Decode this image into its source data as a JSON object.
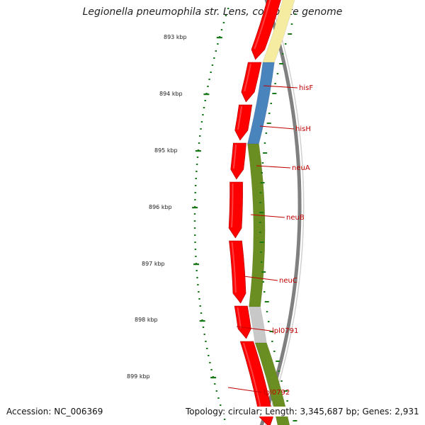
{
  "title": "Legionella pneumophila str. Lens, complete genome",
  "accession_text": "Accession: NC_006369",
  "topology_text": "Topology: circular; Length: 3,345,687 bp; Genes: 2,931",
  "scale_labels": [
    "893 kbp",
    "894 kbp",
    "895 kbp",
    "896 kbp",
    "897 kbp",
    "898 kbp",
    "899 kbp"
  ],
  "gene_labels": [
    "hisF",
    "hisH",
    "neuA",
    "neuB",
    "neuC",
    "lpl0791",
    "lpl0792"
  ],
  "colors": {
    "cds_red": "#ff0000",
    "backbone_gray": "#808080",
    "ring_yellow": "#f5eca2",
    "ring_blue": "#4a84bd",
    "ring_green": "#6b8e23",
    "ring_light_gray": "#c8c8c8",
    "tick_green": "#1a7a1a",
    "label_red": "#c00000"
  },
  "icons": [
    "forward-arrow-icon"
  ]
}
